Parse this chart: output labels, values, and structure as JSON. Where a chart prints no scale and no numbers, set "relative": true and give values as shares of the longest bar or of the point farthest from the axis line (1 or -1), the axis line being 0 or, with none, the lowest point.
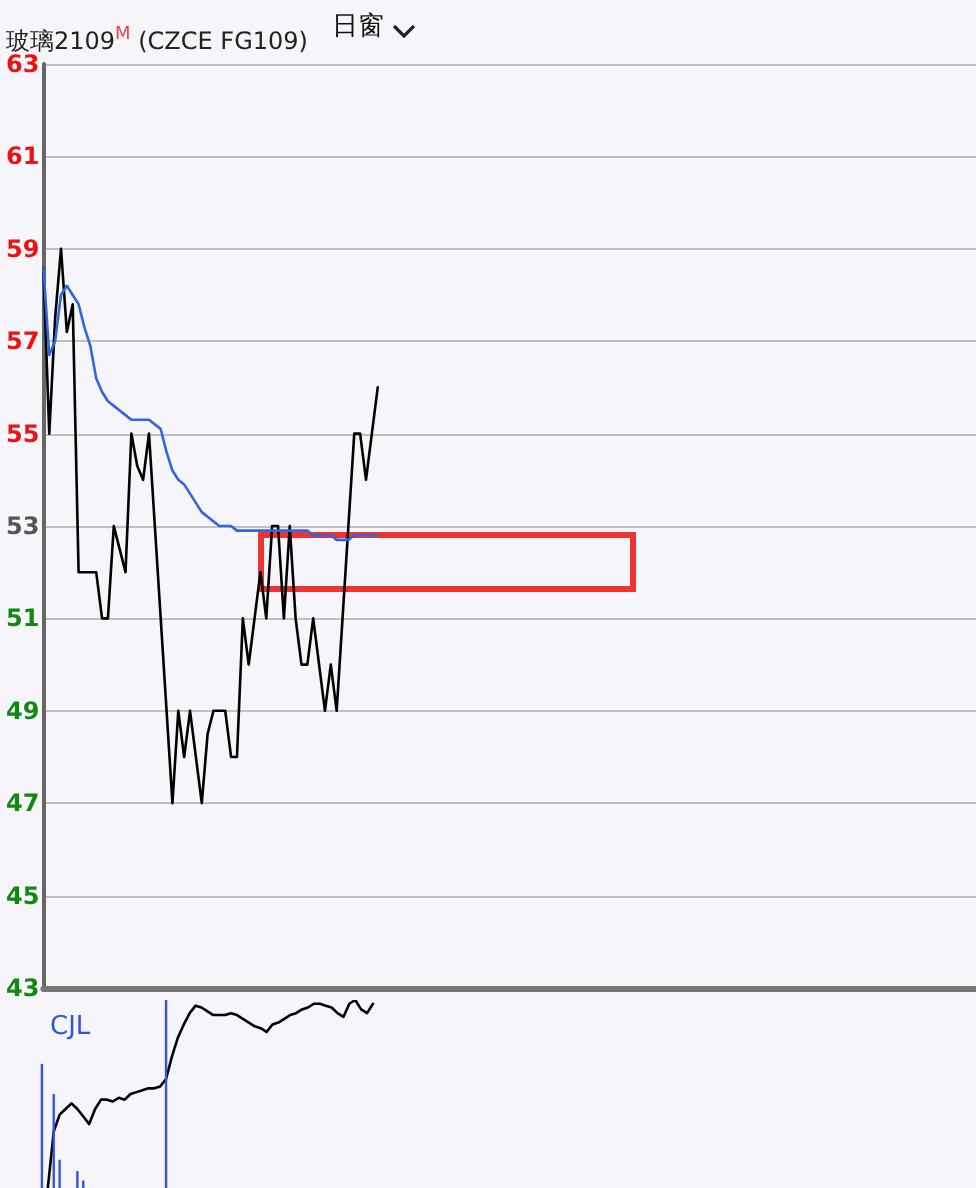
{
  "chart_data": [
    {
      "type": "line",
      "title": "玻璃2109$^{M}$ (CZCE FG109)",
      "annotations": [
        "日窗"
      ],
      "tick_labels": "y",
      "grid": "y",
      "line_style": "solid",
      "categories": [
        null,
        null,
        null,
        null,
        null,
        null,
        null,
        null,
        null,
        null,
        null,
        null,
        null,
        null,
        null,
        null,
        null,
        null,
        null,
        null,
        null,
        null,
        null,
        null,
        null,
        null,
        null,
        null,
        null,
        null,
        null,
        null,
        null,
        null,
        null,
        null,
        null,
        null,
        null,
        null,
        null,
        null,
        null,
        null,
        null,
        null,
        null,
        null,
        null,
        null,
        null,
        null,
        null,
        null,
        null,
        null,
        null,
        null,
        null,
        null,
        null,
        null,
        null,
        null,
        null,
        null,
        null,
        null,
        null,
        null,
        null,
        null,
        null,
        null,
        null,
        null,
        null,
        null,
        null,
        null,
        null,
        null,
        null,
        null,
        null,
        null,
        null,
        null,
        null,
        null,
        null,
        null,
        null,
        null,
        null,
        null,
        null,
        null,
        null,
        null,
        null,
        null,
        null,
        null,
        null,
        null,
        null,
        null,
        null,
        null,
        null,
        null,
        null,
        null,
        null,
        null,
        null,
        null,
        null,
        null,
        null,
        null,
        null,
        null,
        null,
        null,
        null,
        null,
        null,
        null,
        null,
        null,
        null,
        null,
        null,
        null,
        null,
        null,
        null,
        null,
        null,
        null,
        null,
        null,
        null,
        null,
        null,
        null,
        null,
        null,
        null,
        null,
        null,
        null,
        null,
        null,
        null,
        null,
        null,
        null
      ],
      "ylim": [
        43,
        63
      ],
      "yticks": [
        43,
        45,
        47,
        49,
        51,
        53,
        55,
        57,
        59,
        61,
        63
      ],
      "series": [
        {
          "color": "#000000",
          "values": [
            58.6,
            55,
            57.5,
            59,
            57.2,
            57.8,
            52,
            52,
            52,
            52,
            51,
            51,
            53,
            52.5,
            52,
            55,
            54.3,
            54,
            55,
            53,
            51,
            49,
            47,
            49,
            48,
            49,
            48,
            47,
            48.5,
            49,
            49,
            49,
            48,
            48,
            51,
            50,
            51,
            52,
            51,
            53,
            53,
            51,
            53,
            51,
            50,
            50,
            51,
            50,
            49,
            50,
            49,
            51,
            53,
            55,
            55,
            54,
            55,
            56,
            null,
            null,
            null,
            null,
            null,
            null,
            null,
            null,
            null,
            null,
            null,
            null,
            null,
            null,
            null,
            null,
            null,
            null,
            null,
            null,
            null,
            null,
            null,
            null,
            null,
            null,
            null,
            null,
            null,
            null,
            null,
            null,
            null,
            null,
            null,
            null,
            null,
            null,
            null,
            null,
            null,
            null,
            null,
            null,
            null,
            null,
            null,
            null,
            null,
            null,
            null,
            null,
            null,
            null,
            null,
            null,
            null,
            null,
            null,
            null,
            null,
            null,
            null,
            null,
            null,
            null,
            null,
            null,
            null,
            null,
            null,
            null,
            null,
            null,
            null,
            null,
            null,
            null,
            null,
            null,
            null,
            null,
            null,
            null,
            null,
            null,
            null,
            null,
            null,
            null,
            null,
            null,
            null,
            null,
            null,
            null,
            null,
            null,
            null,
            null,
            null,
            null
          ]
        },
        {
          "color": "#3366dd",
          "values": [
            58.6,
            56.7,
            57,
            58,
            58.2,
            58,
            57.8,
            57.3,
            56.9,
            56.2,
            55.9,
            55.7,
            55.6,
            55.5,
            55.4,
            55.3,
            55.3,
            55.3,
            55.3,
            55.2,
            55.1,
            54.6,
            54.2,
            54,
            53.9,
            53.7,
            53.5,
            53.3,
            53.2,
            53.1,
            53,
            53,
            53,
            52.9,
            52.9,
            52.9,
            52.9,
            52.9,
            52.9,
            52.9,
            52.9,
            52.9,
            52.9,
            52.9,
            52.9,
            52.9,
            52.8,
            52.8,
            52.8,
            52.8,
            52.7,
            52.7,
            52.7,
            52.8,
            52.8,
            52.8,
            52.8,
            52.8,
            null,
            null,
            null,
            null,
            null,
            null,
            null,
            null,
            null,
            null,
            null,
            null,
            null,
            null,
            null,
            null,
            null,
            null,
            null,
            null,
            null,
            null,
            null,
            null,
            null,
            null,
            null,
            null,
            null,
            null,
            null,
            null,
            null,
            null,
            null,
            null,
            null,
            null,
            null,
            null,
            null,
            null,
            null,
            null,
            null,
            null,
            null,
            null,
            null,
            null,
            null,
            null,
            null,
            null,
            null,
            null,
            null,
            null,
            null,
            null,
            null,
            null,
            null,
            null,
            null,
            null,
            null,
            null,
            null,
            null,
            null,
            null,
            null,
            null,
            null,
            null,
            null,
            null,
            null,
            null,
            null,
            null,
            null,
            null,
            null,
            null,
            null,
            null,
            null,
            null,
            null,
            null,
            null,
            null,
            null,
            null,
            null,
            null,
            null,
            null,
            null,
            null
          ]
        }
      ]
    },
    {
      "type": "line",
      "title": "CJL",
      "relative": true,
      "tick_labels": false,
      "categories": [
        null,
        null,
        null,
        null,
        null,
        null,
        null,
        null,
        null,
        null,
        null,
        null,
        null,
        null,
        null,
        null,
        null,
        null,
        null,
        null,
        null,
        null,
        null,
        null,
        null,
        null,
        null,
        null,
        null,
        null,
        null,
        null,
        null,
        null,
        null,
        null,
        null,
        null,
        null,
        null,
        null,
        null,
        null,
        null,
        null,
        null,
        null,
        null,
        null,
        null,
        null,
        null,
        null,
        null,
        null,
        null,
        null,
        null,
        null,
        null,
        null,
        null,
        null,
        null,
        null,
        null,
        null,
        null,
        null,
        null,
        null,
        null,
        null,
        null,
        null,
        null,
        null,
        null,
        null,
        null,
        null,
        null,
        null,
        null,
        null,
        null,
        null,
        null,
        null,
        null,
        null,
        null,
        null,
        null,
        null,
        null,
        null,
        null,
        null,
        null,
        null,
        null,
        null,
        null,
        null,
        null,
        null,
        null,
        null,
        null,
        null,
        null,
        null,
        null,
        null,
        null,
        null,
        null,
        null,
        null,
        null,
        null,
        null,
        null,
        null,
        null,
        null,
        null,
        null,
        null,
        null,
        null,
        null,
        null,
        null,
        null,
        null,
        null,
        null,
        null,
        null,
        null,
        null,
        null,
        null,
        null,
        null,
        null,
        null,
        null,
        null,
        null,
        null,
        null,
        null,
        null,
        null,
        null,
        null,
        null
      ],
      "series": [
        {
          "color": "#000000",
          "values": [
            null,
            null,
            0,
            0.3,
            0.39,
            0.42,
            0.45,
            0.42,
            0.38,
            0.34,
            0.42,
            0.47,
            0.47,
            0.46,
            0.48,
            0.47,
            0.5,
            0.51,
            0.52,
            0.53,
            0.53,
            0.54,
            0.58,
            0.7,
            0.8,
            0.87,
            0.93,
            0.97,
            0.96,
            0.94,
            0.92,
            0.92,
            0.92,
            0.93,
            0.92,
            0.9,
            0.88,
            0.86,
            0.85,
            0.83,
            0.87,
            0.88,
            0.9,
            0.92,
            0.93,
            0.95,
            0.96,
            0.98,
            0.98,
            0.97,
            0.96,
            0.93,
            0.91,
            0.98,
            1,
            0.95,
            0.93,
            0.98,
            null,
            null,
            null,
            null,
            null,
            null,
            null,
            null,
            null,
            null,
            null,
            null,
            null,
            null,
            null,
            null,
            null,
            null,
            null,
            null,
            null,
            null,
            null,
            null,
            null,
            null,
            null,
            null,
            null,
            null,
            null,
            null,
            null,
            null,
            null,
            null,
            null,
            null,
            null,
            null,
            null,
            null,
            null,
            null,
            null,
            null,
            null,
            null,
            null,
            null,
            null,
            null,
            null,
            null,
            null,
            null,
            null,
            null,
            null,
            null,
            null,
            null,
            null,
            null,
            null,
            null,
            null,
            null,
            null,
            null,
            null,
            null,
            null,
            null,
            null,
            null,
            null,
            null,
            null,
            null,
            null,
            null,
            null,
            null,
            null,
            null,
            null,
            null,
            null,
            null,
            null,
            null,
            null,
            null,
            null,
            null,
            null,
            null,
            null,
            null,
            null,
            null
          ]
        }
      ]
    },
    {
      "type": "bar",
      "relative": true,
      "tick_labels": false,
      "categories": [
        null,
        null,
        null,
        null,
        null,
        null,
        null,
        null,
        null,
        null,
        null,
        null,
        null,
        null,
        null,
        null,
        null,
        null,
        null,
        null,
        null,
        null,
        null,
        null,
        null,
        null,
        null,
        null,
        null,
        null,
        null,
        null,
        null,
        null,
        null,
        null,
        null,
        null,
        null,
        null,
        null,
        null,
        null,
        null,
        null,
        null,
        null,
        null,
        null,
        null,
        null,
        null,
        null,
        null,
        null,
        null,
        null,
        null,
        null,
        null,
        null,
        null,
        null,
        null,
        null,
        null,
        null,
        null,
        null,
        null,
        null,
        null,
        null,
        null,
        null,
        null,
        null,
        null,
        null,
        null,
        null,
        null,
        null,
        null,
        null,
        null,
        null,
        null,
        null,
        null,
        null,
        null,
        null,
        null,
        null,
        null,
        null,
        null,
        null,
        null,
        null,
        null,
        null,
        null,
        null,
        null,
        null,
        null,
        null,
        null,
        null,
        null,
        null,
        null,
        null,
        null,
        null,
        null,
        null,
        null,
        null,
        null,
        null,
        null,
        null,
        null,
        null,
        null,
        null,
        null,
        null,
        null,
        null,
        null,
        null,
        null,
        null,
        null,
        null,
        null,
        null,
        null,
        null,
        null,
        null,
        null,
        null,
        null,
        null,
        null,
        null,
        null,
        null,
        null,
        null,
        null,
        null,
        null,
        null,
        null
      ],
      "series": [
        {
          "color": "#3355dd",
          "values": [
            null,
            0.66,
            null,
            0.5,
            0.15,
            null,
            null,
            0.09,
            0.04,
            null,
            null,
            null,
            null,
            null,
            null,
            null,
            null,
            null,
            null,
            null,
            null,
            null,
            1,
            null,
            null,
            null,
            null,
            null,
            null,
            null,
            null,
            null,
            null,
            null,
            null,
            null,
            null,
            null,
            null,
            null,
            null,
            null,
            null,
            null,
            null,
            null,
            null,
            null,
            null,
            null,
            null,
            null,
            null,
            null,
            null,
            null,
            null,
            null,
            null,
            null,
            null,
            null,
            null,
            null,
            null,
            null,
            null,
            null,
            null,
            null,
            null,
            null,
            null,
            null,
            null,
            null,
            null,
            null,
            null,
            null,
            null,
            null,
            null,
            null,
            null,
            null,
            null,
            null,
            null,
            null,
            null,
            null,
            null,
            null,
            null,
            null,
            null,
            null,
            null,
            null,
            null,
            null,
            null,
            null,
            null,
            null,
            null,
            null,
            null,
            null,
            null,
            null,
            null,
            null,
            null,
            null,
            null,
            null,
            null,
            null,
            null,
            null,
            null,
            null,
            null,
            null,
            null,
            null,
            null,
            null,
            null,
            null,
            null,
            null,
            null,
            null,
            null,
            null,
            null,
            null,
            null,
            null,
            null,
            null,
            null,
            null,
            null,
            null,
            null,
            null,
            null,
            null,
            null,
            null,
            null,
            null,
            null,
            null,
            null,
            null
          ]
        }
      ]
    }
  ]
}
